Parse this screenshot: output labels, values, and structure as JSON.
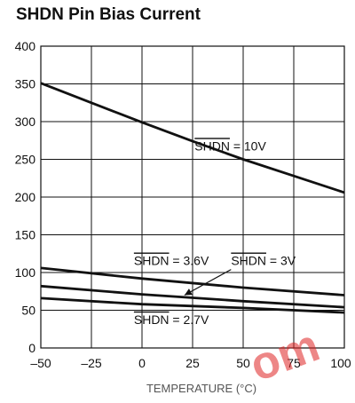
{
  "chart_data": {
    "type": "line",
    "title": "SHDN Pin Bias Current",
    "xlabel": "TEMPERATURE (°C)",
    "ylabel": "",
    "xlim": [
      -50,
      100
    ],
    "ylim": [
      0,
      400
    ],
    "grid": true,
    "x_ticks": [
      -50,
      -25,
      0,
      25,
      50,
      75,
      100
    ],
    "x_tick_labels": [
      "–50",
      "–25",
      "0",
      "25",
      "50",
      "75",
      "100"
    ],
    "y_ticks": [
      0,
      50,
      100,
      150,
      200,
      250,
      300,
      350,
      400
    ],
    "y_tick_labels": [
      "0",
      "50",
      "100",
      "150",
      "200",
      "250",
      "300",
      "350",
      "400"
    ],
    "series": [
      {
        "name": "SHDN = 10V",
        "x": [
          -50,
          -25,
          0,
          25,
          50,
          75,
          100
        ],
        "values": [
          351,
          325,
          299,
          274,
          250,
          228,
          206
        ]
      },
      {
        "name": "SHDN = 3.6V",
        "x": [
          -50,
          0,
          50,
          100
        ],
        "values": [
          106,
          92,
          80,
          70
        ]
      },
      {
        "name": "SHDN = 3V",
        "x": [
          -50,
          0,
          50,
          100
        ],
        "values": [
          82,
          71,
          62,
          54
        ]
      },
      {
        "name": "SHDN = 2.7V",
        "x": [
          -50,
          0,
          50,
          100
        ],
        "values": [
          66,
          58,
          53,
          47
        ]
      }
    ],
    "annotations": {
      "label_10v": {
        "prefix": "SHDN",
        "suffix": " = 10V"
      },
      "label_36v": {
        "prefix": "SHDN",
        "suffix": " = 3.6V"
      },
      "label_3v": {
        "prefix": "SHDN",
        "suffix": " = 3V"
      },
      "label_27v": {
        "prefix": "SHDN",
        "suffix": " = 2.7V"
      }
    },
    "watermark": "om",
    "colors": {
      "line": "#111111",
      "grid": "#111111",
      "watermark": "#e02424"
    }
  }
}
